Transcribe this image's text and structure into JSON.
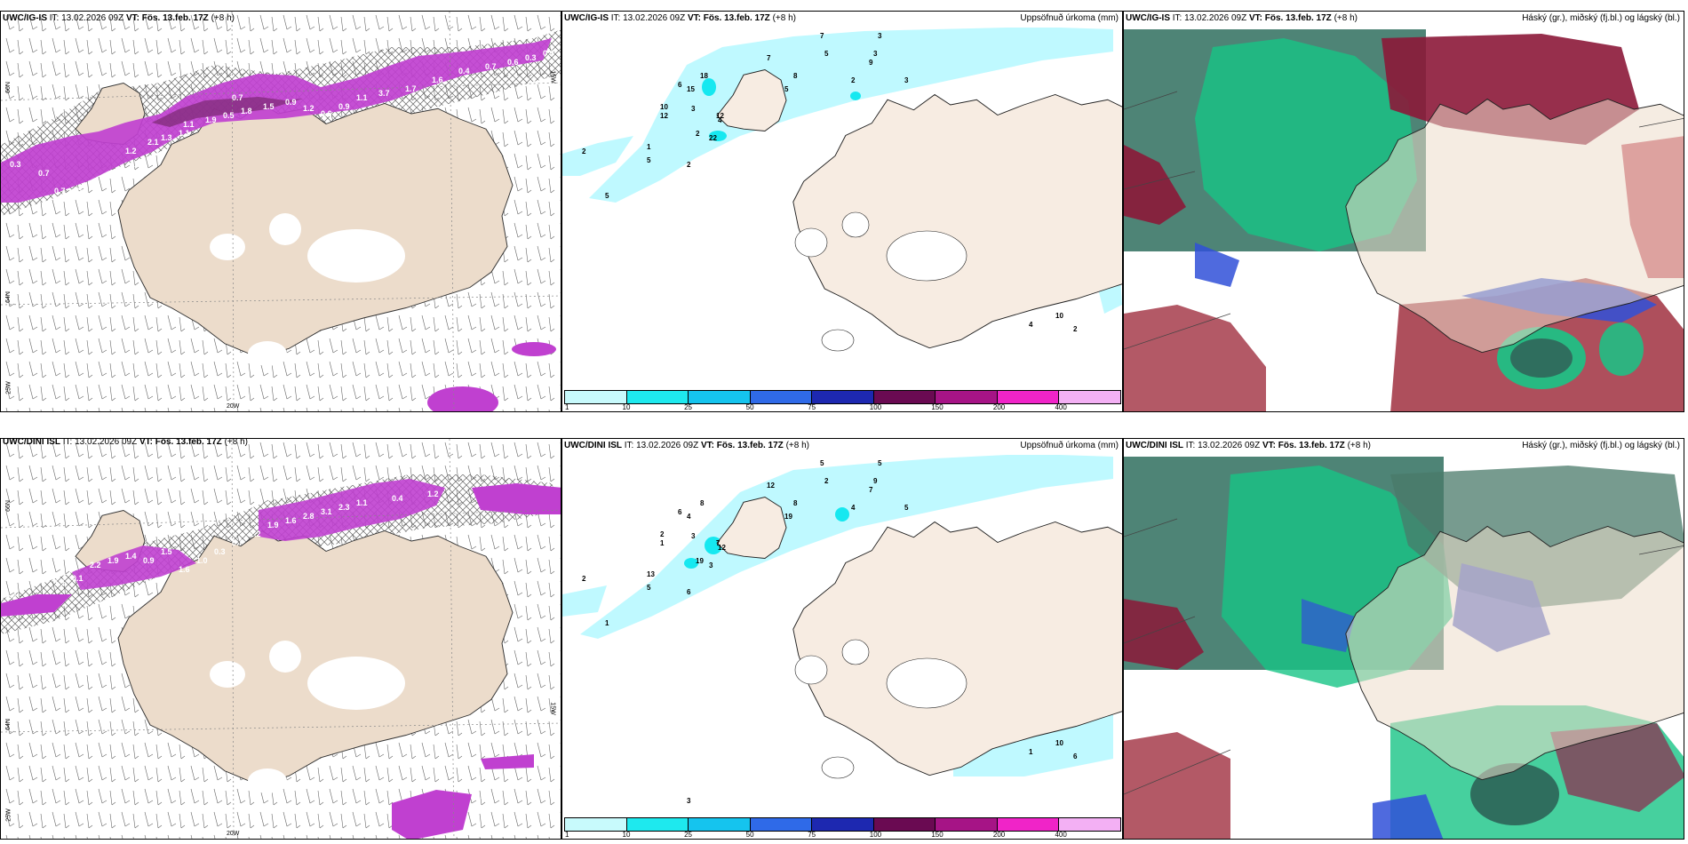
{
  "colors": {
    "land": "#ecdccb",
    "land_beige": "#f7ece2",
    "precip_light": "#bff9ff",
    "precip_mid": "#16e8f0",
    "magenta": "#c040d0",
    "magenta_light": "#e27ef0",
    "green": "#18c486",
    "dark_teal": "#2f6e5e",
    "maroon": "#8c1838",
    "blue": "#3050d8"
  },
  "panels": {
    "p1": {
      "model": "UWC/IG-IS",
      "it_label": "IT:",
      "it_value": "13.02.2026 09Z",
      "vt_label": "VT:",
      "vt_value": "Fös. 13.feb. 17Z",
      "offset": "(+8 h)",
      "lat_top": "66N",
      "lat_mid": "64N",
      "lat_bot": "25W",
      "lon_bottom": "20W",
      "lon_right": "15W",
      "contour_values": [
        "0.3",
        "0.7",
        "0.7",
        "0.5",
        "1.2",
        "2.1",
        "1.3",
        "1.1",
        "1.9",
        "0.5",
        "1.8",
        "1.5",
        "0.9",
        "1.2",
        "0.6",
        "0.9",
        "1.1",
        "3.7",
        "1.7",
        "1.6",
        "0.4",
        "0.7",
        "0.6",
        "0.3",
        "0.9",
        "1.3",
        "1.1",
        "0.7"
      ]
    },
    "p2": {
      "model": "UWC/IG-IS",
      "it_label": "IT:",
      "it_value": "13.02.2026 09Z",
      "vt_label": "VT:",
      "vt_value": "Fös. 13.feb. 17Z",
      "offset": "(+8 h)",
      "right_title": "Uppsöfnuð úrkoma (mm)",
      "values": [
        "2",
        "5",
        "10",
        "18",
        "12",
        "22",
        "5",
        "2",
        "1",
        "2",
        "3",
        "12",
        "15",
        "6",
        "7",
        "5",
        "4",
        "8",
        "7",
        "5",
        "3",
        "3",
        "9",
        "2",
        "3",
        "4",
        "10",
        "2"
      ]
    },
    "p3": {
      "model": "UWC/IG-IS",
      "it_label": "IT:",
      "it_value": "13.02.2026 09Z",
      "vt_label": "VT:",
      "vt_value": "Fös. 13.feb. 17Z",
      "offset": "(+8 h)",
      "right_title": "Háský (gr.), miðský (fj.bl.) og lágský (bl.)"
    },
    "p4": {
      "model": "UWC/DINI ISL",
      "it_label": "IT:",
      "it_value": "13.02.2026 09Z",
      "vt_label": "VT:",
      "vt_value": "Fös. 13.feb. 17Z",
      "offset": "(+8 h)",
      "lat_top": "66N",
      "lat_mid": "64N",
      "lat_bot": "25W",
      "lon_bottom": "20W",
      "lon_right": "15W",
      "contour_values": [
        "0.4",
        "1.2",
        "1.1",
        "0.1",
        "2.2",
        "1.9",
        "1.4",
        "0.9",
        "1.5",
        "1.6",
        "1.0",
        "0.3",
        "0.7",
        "2.2",
        "1.9",
        "1.6",
        "2.8",
        "3.1",
        "2.3",
        "1.1",
        "0.4",
        "1.2",
        "2.8"
      ]
    },
    "p5": {
      "model": "UWC/DINI ISL",
      "it_label": "IT:",
      "it_value": "13.02.2026 09Z",
      "vt_label": "VT:",
      "vt_value": "Fös. 13.feb. 17Z",
      "offset": "(+8 h)",
      "right_title": "Uppsöfnuð úrkoma (mm)",
      "values": [
        "2",
        "1",
        "2",
        "8",
        "7",
        "3",
        "5",
        "6",
        "13",
        "19",
        "3",
        "1",
        "4",
        "6",
        "12",
        "19",
        "12",
        "8",
        "5",
        "2",
        "5",
        "9",
        "7",
        "4",
        "5",
        "1",
        "10",
        "6",
        "3"
      ]
    },
    "p6": {
      "model": "UWC/DINI ISL",
      "it_label": "IT:",
      "it_value": "13.02.2026 09Z",
      "vt_label": "VT:",
      "vt_value": "Fös. 13.feb. 17Z",
      "offset": "(+8 h)",
      "right_title": "Háský (gr.), miðský (fj.bl.) og lágský (bl.)"
    }
  },
  "colorbar": {
    "ticks": [
      "1",
      "10",
      "25",
      "50",
      "75",
      "100",
      "150",
      "200",
      "400"
    ],
    "colors": [
      "#c8fafc",
      "#1ee9ee",
      "#15c4ee",
      "#2f6ae8",
      "#1d28b0",
      "#6a0a52",
      "#a61486",
      "#f024c8",
      "#f3b0f4"
    ]
  }
}
